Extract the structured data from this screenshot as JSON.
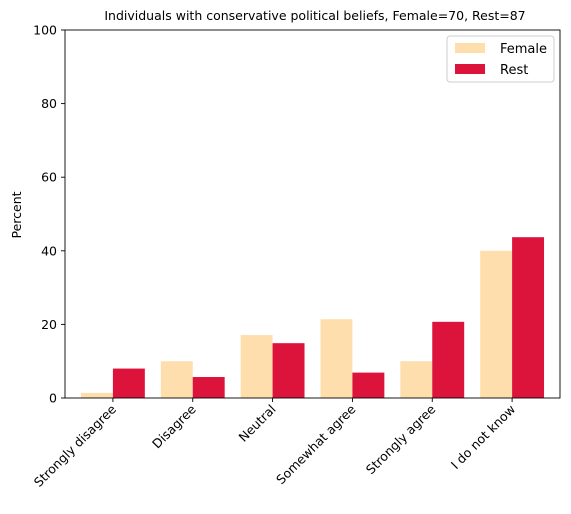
{
  "chart_data": {
    "type": "bar",
    "title": "Individuals with conservative political beliefs, Female=70, Rest=87",
    "xlabel": "",
    "ylabel": "Percent",
    "ylim": [
      0,
      100
    ],
    "yticks": [
      0,
      20,
      40,
      60,
      80,
      100
    ],
    "categories": [
      "Strongly disagree",
      "Disagree",
      "Neutral",
      "Somewhat agree",
      "Strongly agree",
      "I do not know"
    ],
    "series": [
      {
        "name": "Female",
        "color": "#FFDEAD",
        "values": [
          1.4,
          10.0,
          17.1,
          21.4,
          10.0,
          40.0
        ]
      },
      {
        "name": "Rest",
        "color": "#DC143C",
        "values": [
          8.0,
          5.7,
          14.9,
          6.9,
          20.7,
          43.7
        ]
      }
    ],
    "legend": {
      "position": "top-right"
    },
    "grid": false
  }
}
